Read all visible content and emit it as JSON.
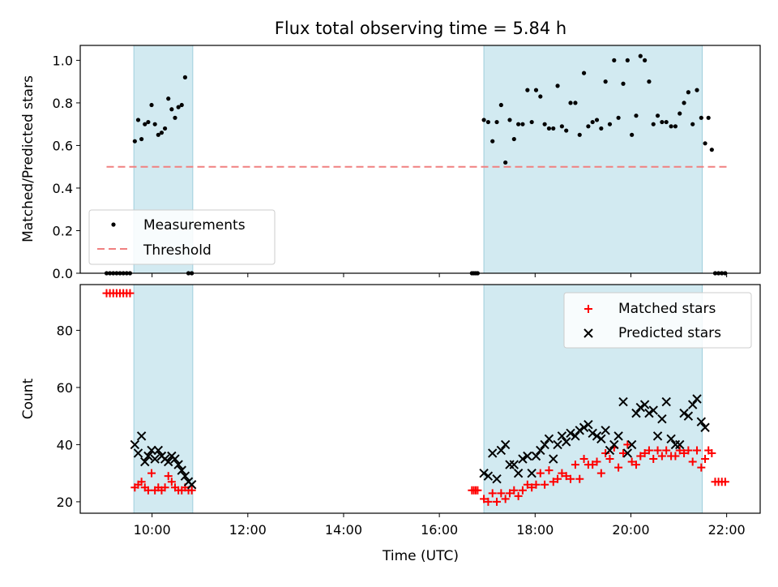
{
  "chart_data": [
    {
      "type": "scatter",
      "title": "Flux total observing time = 5.84 h",
      "xlabel": "",
      "ylabel": "Matched/Predicted stars",
      "xlim_hours": [
        8.5,
        22.7
      ],
      "ylim": [
        0,
        1.07
      ],
      "yticks": [
        0.0,
        0.2,
        0.4,
        0.6,
        0.8,
        1.0
      ],
      "ytick_labels": [
        "0.0",
        "0.2",
        "0.4",
        "0.6",
        "0.8",
        "1.0"
      ],
      "xticks_hours": [
        10,
        12,
        14,
        16,
        18,
        20,
        22
      ],
      "legend_position": "lower-left",
      "shaded_intervals_hours": [
        [
          9.62,
          10.85
        ],
        [
          16.93,
          21.49
        ]
      ],
      "shade_color": "#add8e6",
      "threshold": {
        "name": "Threshold",
        "value": 0.5,
        "x_range_hours": [
          9.05,
          22.0
        ],
        "color": "#f08080"
      },
      "series": [
        {
          "name": "Measurements",
          "color": "#000000",
          "x_hours": [
            9.05,
            9.12,
            9.19,
            9.26,
            9.33,
            9.4,
            9.47,
            9.54,
            9.64,
            9.71,
            9.78,
            9.85,
            9.92,
            9.99,
            10.06,
            10.13,
            10.2,
            10.27,
            10.34,
            10.41,
            10.48,
            10.55,
            10.62,
            10.69,
            10.76,
            10.83,
            16.68,
            16.72,
            16.76,
            16.8,
            16.93,
            17.02,
            17.11,
            17.2,
            17.29,
            17.38,
            17.47,
            17.56,
            17.65,
            17.74,
            17.84,
            17.93,
            18.02,
            18.11,
            18.2,
            18.29,
            18.38,
            18.47,
            18.56,
            18.65,
            18.74,
            18.84,
            18.93,
            19.02,
            19.11,
            19.2,
            19.29,
            19.38,
            19.47,
            19.56,
            19.65,
            19.74,
            19.84,
            19.93,
            20.02,
            20.11,
            20.2,
            20.29,
            20.38,
            20.47,
            20.56,
            20.65,
            20.74,
            20.84,
            20.93,
            21.02,
            21.11,
            21.2,
            21.29,
            21.38,
            21.47,
            21.55,
            21.62,
            21.69,
            21.76,
            21.83,
            21.9,
            21.97
          ],
          "y": [
            0,
            0,
            0,
            0,
            0,
            0,
            0,
            0,
            0.62,
            0.72,
            0.63,
            0.7,
            0.71,
            0.79,
            0.7,
            0.65,
            0.66,
            0.68,
            0.82,
            0.77,
            0.73,
            0.78,
            0.79,
            0.92,
            0,
            0,
            0,
            0,
            0,
            0,
            0.72,
            0.71,
            0.62,
            0.71,
            0.79,
            0.52,
            0.72,
            0.63,
            0.7,
            0.7,
            0.86,
            0.71,
            0.86,
            0.83,
            0.7,
            0.68,
            0.68,
            0.88,
            0.69,
            0.67,
            0.8,
            0.8,
            0.65,
            0.94,
            0.69,
            0.71,
            0.72,
            0.68,
            0.9,
            0.7,
            1.0,
            0.73,
            0.89,
            1.0,
            0.65,
            0.74,
            1.02,
            1.0,
            0.9,
            0.7,
            0.74,
            0.71,
            0.71,
            0.69,
            0.69,
            0.75,
            0.8,
            0.85,
            0.7,
            0.86,
            0.73,
            0.61,
            0.73,
            0.58,
            0,
            0,
            0,
            0
          ]
        }
      ]
    },
    {
      "type": "scatter",
      "title": "",
      "xlabel": "Time (UTC)",
      "ylabel": "Count",
      "xlim_hours": [
        8.5,
        22.7
      ],
      "ylim": [
        16,
        96
      ],
      "yticks": [
        20,
        40,
        60,
        80
      ],
      "ytick_labels": [
        "20",
        "40",
        "60",
        "80"
      ],
      "xticks_hours": [
        10,
        12,
        14,
        16,
        18,
        20,
        22
      ],
      "xtick_labels": [
        "10:00",
        "12:00",
        "14:00",
        "16:00",
        "18:00",
        "20:00",
        "22:00"
      ],
      "legend_position": "upper-right",
      "shaded_intervals_hours": [
        [
          9.62,
          10.85
        ],
        [
          16.93,
          21.49
        ]
      ],
      "shade_color": "#add8e6",
      "series": [
        {
          "name": "Matched stars",
          "marker": "plus",
          "color": "#ff0000",
          "x_hours": [
            9.05,
            9.12,
            9.19,
            9.26,
            9.33,
            9.4,
            9.47,
            9.54,
            9.64,
            9.71,
            9.78,
            9.85,
            9.92,
            9.99,
            10.06,
            10.13,
            10.2,
            10.27,
            10.34,
            10.41,
            10.48,
            10.55,
            10.62,
            10.69,
            10.76,
            10.83,
            16.68,
            16.72,
            16.76,
            16.8,
            16.93,
            17.02,
            17.11,
            17.2,
            17.29,
            17.38,
            17.47,
            17.56,
            17.65,
            17.74,
            17.84,
            17.93,
            18.02,
            18.11,
            18.2,
            18.29,
            18.38,
            18.47,
            18.56,
            18.65,
            18.74,
            18.84,
            18.93,
            19.02,
            19.11,
            19.2,
            19.29,
            19.38,
            19.47,
            19.56,
            19.65,
            19.74,
            19.84,
            19.93,
            20.02,
            20.11,
            20.2,
            20.29,
            20.38,
            20.47,
            20.56,
            20.65,
            20.74,
            20.84,
            20.93,
            21.02,
            21.11,
            21.2,
            21.29,
            21.38,
            21.47,
            21.55,
            21.62,
            21.69,
            21.76,
            21.83,
            21.9,
            21.97
          ],
          "y": [
            93,
            93,
            93,
            93,
            93,
            93,
            93,
            93,
            25,
            26,
            27,
            25,
            24,
            30,
            24,
            25,
            24,
            25,
            29,
            27,
            25,
            24,
            24,
            25,
            24,
            24,
            24,
            24,
            24,
            24,
            21,
            20,
            23,
            20,
            23,
            21,
            23,
            24,
            22,
            24,
            26,
            25,
            26,
            30,
            26,
            31,
            27,
            28,
            30,
            29,
            28,
            33,
            28,
            35,
            33,
            33,
            34,
            30,
            37,
            35,
            39,
            32,
            37,
            40,
            34,
            33,
            36,
            37,
            38,
            35,
            38,
            36,
            38,
            36,
            36,
            38,
            37,
            38,
            34,
            38,
            32,
            35,
            38,
            37,
            27,
            27,
            27,
            27
          ]
        },
        {
          "name": "Predicted stars",
          "marker": "x",
          "color": "#000000",
          "x_hours": [
            9.64,
            9.71,
            9.78,
            9.85,
            9.92,
            9.99,
            10.06,
            10.13,
            10.2,
            10.27,
            10.34,
            10.41,
            10.48,
            10.55,
            10.62,
            10.69,
            10.76,
            10.83,
            16.93,
            17.02,
            17.11,
            17.2,
            17.29,
            17.38,
            17.47,
            17.56,
            17.65,
            17.74,
            17.84,
            17.93,
            18.02,
            18.11,
            18.2,
            18.29,
            18.38,
            18.47,
            18.56,
            18.65,
            18.74,
            18.84,
            18.93,
            19.02,
            19.11,
            19.2,
            19.29,
            19.38,
            19.47,
            19.56,
            19.65,
            19.74,
            19.84,
            19.93,
            20.02,
            20.11,
            20.2,
            20.29,
            20.38,
            20.47,
            20.56,
            20.65,
            20.74,
            20.84,
            20.93,
            21.02,
            21.11,
            21.2,
            21.29,
            21.38,
            21.47,
            21.55
          ],
          "y": [
            40,
            37,
            43,
            34,
            36,
            38,
            35,
            38,
            36,
            35,
            34,
            36,
            35,
            33,
            31,
            29,
            27,
            26,
            30,
            29,
            37,
            28,
            38,
            40,
            33,
            33,
            30,
            35,
            36,
            30,
            36,
            38,
            40,
            42,
            35,
            40,
            43,
            41,
            44,
            43,
            45,
            46,
            47,
            44,
            43,
            42,
            45,
            38,
            40,
            43,
            55,
            37,
            40,
            51,
            53,
            54,
            51,
            52,
            43,
            49,
            55,
            42,
            40,
            40,
            51,
            50,
            54,
            56,
            48,
            46
          ]
        }
      ]
    }
  ]
}
